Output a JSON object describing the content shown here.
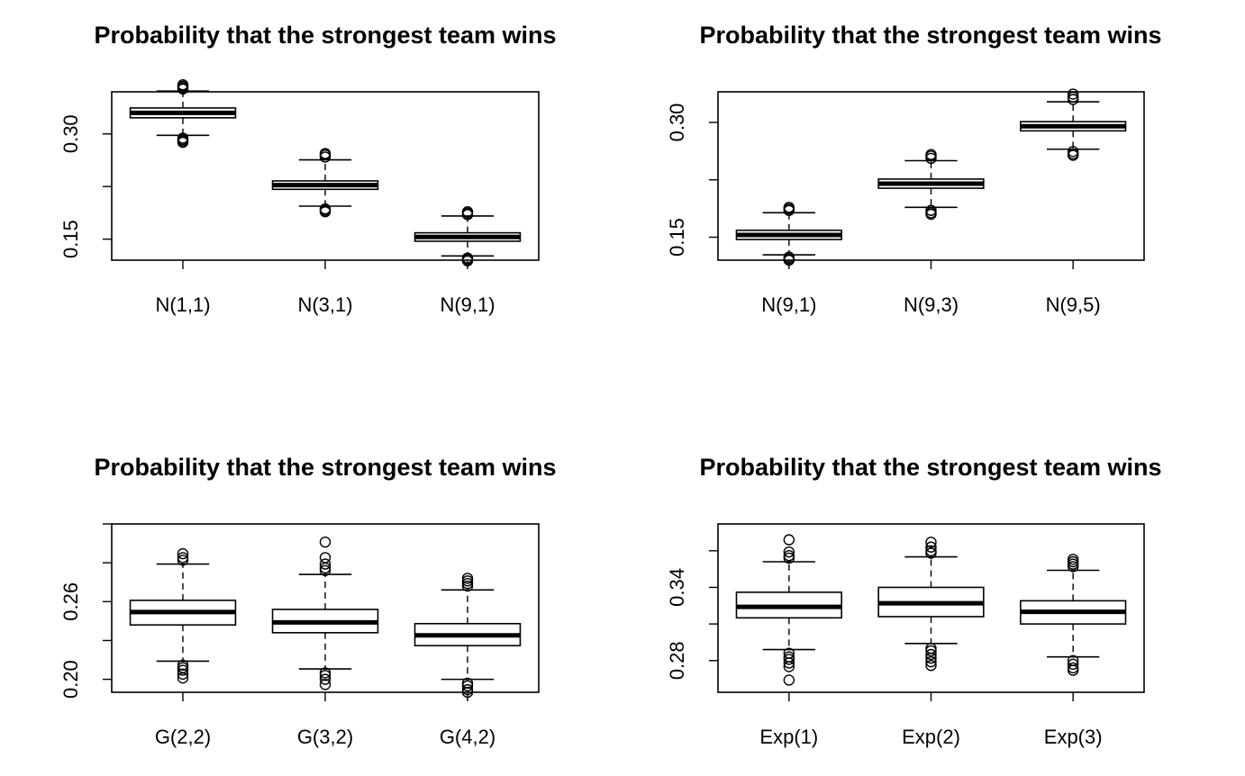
{
  "chart_data": [
    {
      "type": "box",
      "title": "Probability that the strongest team wins",
      "categories": [
        "N(1,1)",
        "N(3,1)",
        "N(9,1)"
      ],
      "yticks": [
        "0.15",
        "0.30"
      ],
      "ylim": [
        0.12,
        0.36
      ],
      "boxes": [
        {
          "q1": 0.323,
          "median": 0.33,
          "q3": 0.337,
          "lo": 0.298,
          "hi": 0.361,
          "outliers_low": [
            0.294,
            0.292,
            0.29,
            0.288
          ],
          "outliers_high": [
            0.364,
            0.366,
            0.368,
            0.37
          ]
        },
        {
          "q1": 0.221,
          "median": 0.227,
          "q3": 0.233,
          "lo": 0.197,
          "hi": 0.263,
          "outliers_low": [
            0.193,
            0.191,
            0.189
          ],
          "outliers_high": [
            0.267,
            0.27,
            0.272
          ]
        },
        {
          "q1": 0.147,
          "median": 0.153,
          "q3": 0.159,
          "lo": 0.126,
          "hi": 0.183,
          "outliers_low": [
            0.123,
            0.121,
            0.119
          ],
          "outliers_high": [
            0.185,
            0.187,
            0.189
          ]
        }
      ]
    },
    {
      "type": "box",
      "title": "Probability that the strongest team wins",
      "categories": [
        "N(9,1)",
        "N(9,3)",
        "N(9,5)"
      ],
      "yticks": [
        "0.15",
        "0.30"
      ],
      "ylim": [
        0.12,
        0.34
      ],
      "boxes": [
        {
          "q1": 0.147,
          "median": 0.153,
          "q3": 0.159,
          "lo": 0.127,
          "hi": 0.182,
          "outliers_low": [
            0.124,
            0.122,
            0.12
          ],
          "outliers_high": [
            0.185,
            0.187,
            0.189
          ]
        },
        {
          "q1": 0.214,
          "median": 0.22,
          "q3": 0.226,
          "lo": 0.189,
          "hi": 0.25,
          "outliers_low": [
            0.185,
            0.182,
            0.18
          ],
          "outliers_high": [
            0.253,
            0.256,
            0.258
          ]
        },
        {
          "q1": 0.289,
          "median": 0.295,
          "q3": 0.301,
          "lo": 0.265,
          "hi": 0.327,
          "outliers_low": [
            0.262,
            0.259,
            0.257
          ],
          "outliers_high": [
            0.33,
            0.333,
            0.337
          ]
        }
      ]
    },
    {
      "type": "box",
      "title": "Probability that the strongest team wins",
      "categories": [
        "G(2,2)",
        "G(3,2)",
        "G(4,2)"
      ],
      "yticks": [
        "0.20",
        "0.26"
      ],
      "ylim": [
        0.19,
        0.32
      ],
      "boxes": [
        {
          "q1": 0.242,
          "median": 0.252,
          "q3": 0.261,
          "lo": 0.214,
          "hi": 0.289,
          "outliers_low": [
            0.211,
            0.209,
            0.207,
            0.204,
            0.201
          ],
          "outliers_high": [
            0.292,
            0.294,
            0.297
          ]
        },
        {
          "q1": 0.236,
          "median": 0.244,
          "q3": 0.254,
          "lo": 0.208,
          "hi": 0.281,
          "outliers_low": [
            0.205,
            0.203,
            0.2,
            0.196
          ],
          "outliers_high": [
            0.284,
            0.286,
            0.289,
            0.294,
            0.306
          ]
        },
        {
          "q1": 0.226,
          "median": 0.234,
          "q3": 0.243,
          "lo": 0.2,
          "hi": 0.269,
          "outliers_low": [
            0.197,
            0.195,
            0.192,
            0.19
          ],
          "outliers_high": [
            0.272,
            0.274,
            0.276,
            0.278
          ]
        }
      ]
    },
    {
      "type": "box",
      "title": "Probability that the strongest team wins",
      "categories": [
        "Exp(1)",
        "Exp(2)",
        "Exp(3)"
      ],
      "yticks": [
        "0.28",
        "0.34"
      ],
      "ylim": [
        0.254,
        0.392
      ],
      "boxes": [
        {
          "q1": 0.315,
          "median": 0.324,
          "q3": 0.336,
          "lo": 0.289,
          "hi": 0.361,
          "outliers_low": [
            0.286,
            0.283,
            0.281,
            0.278,
            0.275,
            0.264
          ],
          "outliers_high": [
            0.364,
            0.366,
            0.369,
            0.379
          ]
        },
        {
          "q1": 0.316,
          "median": 0.327,
          "q3": 0.34,
          "lo": 0.294,
          "hi": 0.365,
          "outliers_low": [
            0.29,
            0.288,
            0.285,
            0.282,
            0.279,
            0.276
          ],
          "outliers_high": [
            0.368,
            0.37,
            0.373,
            0.377
          ]
        },
        {
          "q1": 0.31,
          "median": 0.32,
          "q3": 0.329,
          "lo": 0.283,
          "hi": 0.354,
          "outliers_low": [
            0.28,
            0.277,
            0.274,
            0.272
          ],
          "outliers_high": [
            0.357,
            0.359,
            0.361,
            0.363
          ]
        }
      ]
    }
  ]
}
